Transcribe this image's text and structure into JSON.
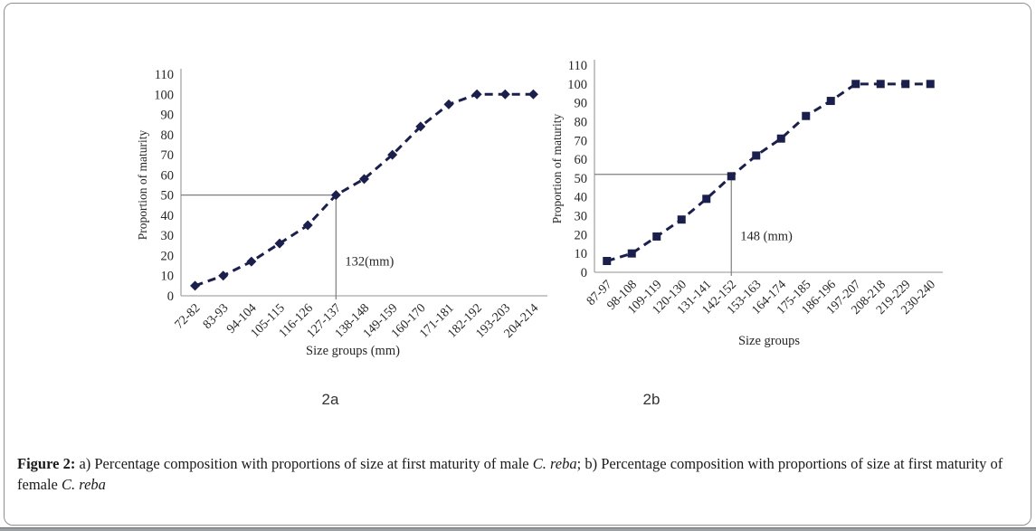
{
  "page": {
    "background_color": "#ffffff",
    "frame_border_color": "#8f8f8f",
    "bottom_bar_color": "#9aa0a3"
  },
  "caption": {
    "segments": [
      {
        "text": "Figure 2:",
        "bold": true,
        "italic": false
      },
      {
        "text": " a) Percentage composition with proportions of size at first maturity of male ",
        "bold": false,
        "italic": false
      },
      {
        "text": "C. reba",
        "bold": false,
        "italic": true
      },
      {
        "text": "; b) Percentage composition with proportions of size at first maturity of female ",
        "bold": false,
        "italic": false
      },
      {
        "text": "C. reba",
        "bold": false,
        "italic": true
      }
    ]
  },
  "chart_data": [
    {
      "id": "2a",
      "type": "line",
      "title": "",
      "sublabel": "2a",
      "xlabel": "Size groups (mm)",
      "ylabel": "Proportion of maturity",
      "ylim": [
        0,
        110
      ],
      "ytick_step": 10,
      "grid": false,
      "legend": "none",
      "categories": [
        "72-82",
        "83-93",
        "94-104",
        "105-115",
        "116-126",
        "127-137",
        "138-148",
        "149-159",
        "160-170",
        "171-181",
        "182-192",
        "193-203",
        "204-214"
      ],
      "values": [
        5,
        10,
        17,
        26,
        35,
        50,
        58,
        70,
        84,
        95,
        100,
        100,
        100
      ],
      "line_style": "dashed",
      "line_color": "#1b1f4b",
      "marker": "diamond",
      "axis_color": "#a6a6a6",
      "annotation": {
        "text": "132(mm)",
        "category_index": 5,
        "crossing_value": 50,
        "label_value": 15,
        "ref_line_color": "#7f7f7f"
      }
    },
    {
      "id": "2b",
      "type": "line",
      "title": "",
      "sublabel": "2b",
      "xlabel": "Size groups",
      "ylabel": "Proportion of maturity",
      "ylim": [
        0,
        110
      ],
      "ytick_step": 10,
      "grid": false,
      "legend": "none",
      "categories": [
        "87-97",
        "98-108",
        "109-119",
        "120-130",
        "131-141",
        "142-152",
        "153-163",
        "164-174",
        "175-185",
        "186-196",
        "197-207",
        "208-218",
        "219-229",
        "230-240"
      ],
      "values": [
        6,
        10,
        19,
        28,
        39,
        51,
        62,
        71,
        83,
        91,
        100,
        100,
        100,
        100
      ],
      "line_style": "dashed",
      "line_color": "#1b1f4b",
      "marker": "square",
      "axis_color": "#a6a6a6",
      "annotation": {
        "text": "148 (mm)",
        "category_index": 5,
        "crossing_value": 52,
        "label_value": 17,
        "ref_line_color": "#7f7f7f"
      }
    }
  ]
}
